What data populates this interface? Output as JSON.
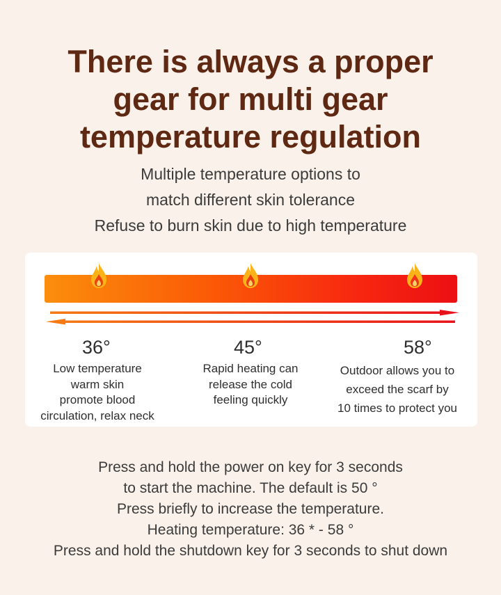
{
  "headline": {
    "lines": [
      "There is always a proper",
      "gear for multi gear",
      "temperature regulation"
    ]
  },
  "subtitle": {
    "lines": [
      "Multiple temperature options to",
      "match different skin tolerance",
      "Refuse to burn skin due to high temperature"
    ]
  },
  "colors": {
    "headline": "#5e2812",
    "background": "#f9f1ea",
    "bar_start": "#fb8e0c",
    "bar_end": "#ec0f13",
    "arrow_orange": "#f57a14",
    "arrow_red": "#e8131a"
  },
  "levels": [
    {
      "temp": "36°",
      "desc": [
        "Low temperature",
        "warm skin",
        "promote blood",
        "circulation, relax neck"
      ],
      "icon": "flame-icon"
    },
    {
      "temp": "45°",
      "desc": [
        "Rapid heating can",
        "release the cold",
        "feeling quickly"
      ],
      "icon": "flame-icon"
    },
    {
      "temp": "58°",
      "desc": [
        "Outdoor allows you to",
        "exceed the scarf by",
        "10 times to protect you"
      ],
      "icon": "flame-icon"
    }
  ],
  "instructions": {
    "lines": [
      "Press and hold the power on key for 3 seconds",
      "to start the machine. The default is 50 °",
      "Press briefly to increase the temperature.",
      "Heating temperature: 36 * - 58 °",
      "Press and hold the shutdown key for 3 seconds to shut down"
    ]
  }
}
